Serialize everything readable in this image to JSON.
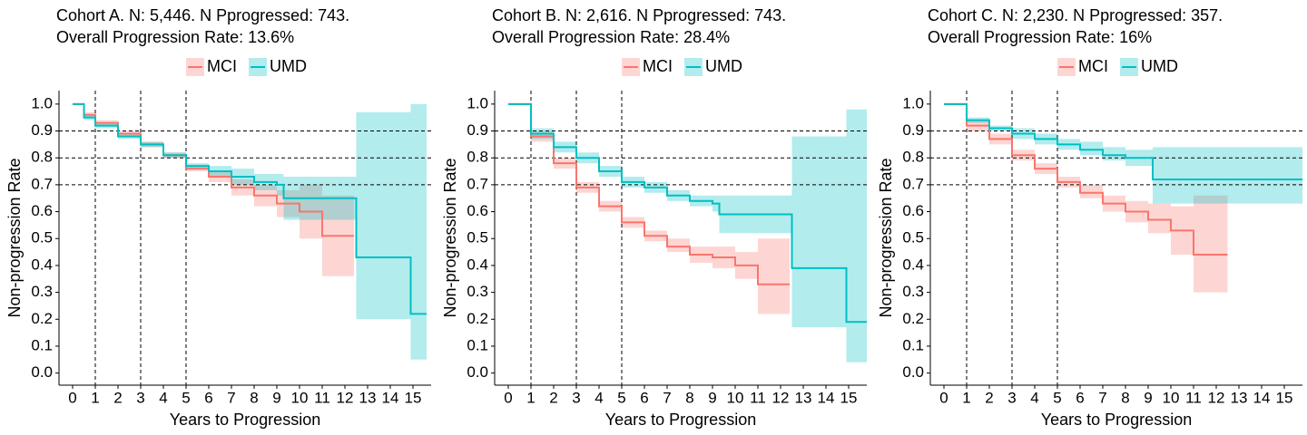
{
  "chart_data": [
    {
      "type": "step",
      "title": "Cohort A. N: 5,446. N Pprogressed: 743.",
      "subtitle": "Overall Progression Rate: 13.6%",
      "x_label": "Years to Progression",
      "y_label": "Non-progression Rate",
      "legend": "top",
      "xlim": [
        -0.6,
        15.8
      ],
      "ylim": [
        -0.045,
        1.05
      ],
      "xticks": [
        0,
        1,
        2,
        3,
        4,
        5,
        6,
        7,
        8,
        9,
        10,
        11,
        12,
        13,
        14,
        15
      ],
      "yticks": [
        {
          "value": 0,
          "label": "0.0"
        },
        0.1,
        0.2,
        0.3,
        0.4,
        0.5,
        0.6,
        0.7,
        0.8,
        0.9,
        {
          "value": 1,
          "label": "1.0"
        }
      ],
      "vlines": [
        1,
        3,
        5
      ],
      "hlines": [
        0.9,
        0.8,
        0.7
      ],
      "series": [
        {
          "name": "MCI",
          "color": "#F8766D",
          "x": [
            0,
            0.5,
            1,
            2,
            3,
            4,
            5,
            6,
            7,
            8,
            9,
            10,
            11,
            12.4
          ],
          "values": [
            1,
            0.96,
            0.93,
            0.89,
            0.85,
            0.81,
            0.76,
            0.73,
            0.69,
            0.66,
            0.63,
            0.6,
            0.51,
            0.51
          ],
          "lower": [
            1,
            0.95,
            0.92,
            0.88,
            0.84,
            0.8,
            0.75,
            0.71,
            0.66,
            0.62,
            0.58,
            0.5,
            0.36,
            0.36
          ],
          "upper": [
            1,
            0.97,
            0.94,
            0.9,
            0.86,
            0.82,
            0.77,
            0.75,
            0.72,
            0.7,
            0.68,
            0.7,
            0.66,
            0.66
          ]
        },
        {
          "name": "UMD",
          "color": "#00BFC4",
          "x": [
            0,
            0.5,
            1,
            2,
            3,
            4,
            5,
            6,
            7,
            8,
            9,
            9.3,
            12.5,
            14.9,
            15.6
          ],
          "values": [
            1,
            0.95,
            0.92,
            0.88,
            0.85,
            0.81,
            0.77,
            0.75,
            0.73,
            0.71,
            0.7,
            0.65,
            0.43,
            0.22,
            0.22
          ],
          "lower": [
            1,
            0.94,
            0.91,
            0.87,
            0.84,
            0.8,
            0.76,
            0.73,
            0.7,
            0.68,
            0.66,
            0.57,
            0.2,
            0.05,
            0.05
          ],
          "upper": [
            1,
            0.96,
            0.93,
            0.89,
            0.86,
            0.82,
            0.78,
            0.77,
            0.76,
            0.74,
            0.74,
            0.73,
            0.97,
            1.0,
            1.0
          ]
        }
      ]
    },
    {
      "type": "step",
      "title": "Cohort B. N: 2,616. N Pprogressed: 743.",
      "subtitle": "Overall Progression Rate: 28.4%",
      "x_label": "Years to Progression",
      "y_label": "Non-progression Rate",
      "legend": "top",
      "xlim": [
        -0.6,
        15.8
      ],
      "ylim": [
        -0.045,
        1.05
      ],
      "xticks": [
        0,
        1,
        2,
        3,
        4,
        5,
        6,
        7,
        8,
        9,
        10,
        11,
        12,
        13,
        14,
        15
      ],
      "yticks": [
        {
          "value": 0,
          "label": "0.0"
        },
        0.1,
        0.2,
        0.3,
        0.4,
        0.5,
        0.6,
        0.7,
        0.8,
        0.9,
        {
          "value": 1,
          "label": "1.0"
        }
      ],
      "vlines": [
        1,
        3,
        5
      ],
      "hlines": [
        0.9,
        0.8,
        0.7
      ],
      "series": [
        {
          "name": "MCI",
          "color": "#F8766D",
          "x": [
            0,
            1,
            2,
            3,
            4,
            5,
            6,
            7,
            8,
            9,
            10,
            11,
            12.4
          ],
          "values": [
            1,
            0.88,
            0.78,
            0.69,
            0.62,
            0.56,
            0.51,
            0.47,
            0.44,
            0.43,
            0.4,
            0.33,
            0.33
          ],
          "lower": [
            1,
            0.86,
            0.76,
            0.67,
            0.6,
            0.54,
            0.49,
            0.45,
            0.41,
            0.39,
            0.35,
            0.22,
            0.22
          ],
          "upper": [
            1,
            0.9,
            0.8,
            0.71,
            0.64,
            0.58,
            0.53,
            0.5,
            0.47,
            0.47,
            0.45,
            0.5,
            0.5
          ]
        },
        {
          "name": "UMD",
          "color": "#00BFC4",
          "x": [
            0,
            1,
            2,
            3,
            4,
            5,
            6,
            7,
            8,
            9,
            9.3,
            10,
            11,
            12.5,
            14.9,
            15.8
          ],
          "values": [
            1,
            0.89,
            0.84,
            0.8,
            0.75,
            0.71,
            0.69,
            0.66,
            0.64,
            0.63,
            0.59,
            0.59,
            0.59,
            0.39,
            0.19,
            0.19
          ],
          "lower": [
            1,
            0.87,
            0.82,
            0.78,
            0.73,
            0.69,
            0.67,
            0.64,
            0.62,
            0.6,
            0.52,
            0.52,
            0.52,
            0.17,
            0.04,
            0.04
          ],
          "upper": [
            1,
            0.91,
            0.86,
            0.82,
            0.77,
            0.73,
            0.71,
            0.68,
            0.66,
            0.66,
            0.66,
            0.66,
            0.66,
            0.88,
            0.98,
            0.98
          ]
        }
      ]
    },
    {
      "type": "step",
      "title": "Cohort C. N: 2,230. N Pprogressed: 357.",
      "subtitle": "Overall Progression Rate: 16%",
      "x_label": "Years to Progression",
      "y_label": "Non-progression Rate",
      "legend": "top",
      "xlim": [
        -0.6,
        15.8
      ],
      "ylim": [
        -0.045,
        1.05
      ],
      "xticks": [
        0,
        1,
        2,
        3,
        4,
        5,
        6,
        7,
        8,
        9,
        10,
        11,
        12,
        13,
        14,
        15
      ],
      "yticks": [
        {
          "value": 0,
          "label": "0.0"
        },
        0.1,
        0.2,
        0.3,
        0.4,
        0.5,
        0.6,
        0.7,
        0.8,
        0.9,
        {
          "value": 1,
          "label": "1.0"
        }
      ],
      "vlines": [
        1,
        3,
        5
      ],
      "hlines": [
        0.9,
        0.8,
        0.7
      ],
      "series": [
        {
          "name": "MCI",
          "color": "#F8766D",
          "x": [
            0,
            1,
            2,
            3,
            4,
            5,
            6,
            7,
            8,
            9,
            10,
            11,
            12.5
          ],
          "values": [
            1,
            0.92,
            0.87,
            0.81,
            0.76,
            0.71,
            0.67,
            0.63,
            0.6,
            0.57,
            0.53,
            0.44,
            0.44
          ],
          "lower": [
            1,
            0.9,
            0.85,
            0.79,
            0.74,
            0.69,
            0.65,
            0.6,
            0.56,
            0.52,
            0.44,
            0.3,
            0.3
          ],
          "upper": [
            1,
            0.94,
            0.89,
            0.83,
            0.78,
            0.73,
            0.7,
            0.66,
            0.64,
            0.63,
            0.62,
            0.66,
            0.66
          ]
        },
        {
          "name": "UMD",
          "color": "#00BFC4",
          "x": [
            0,
            1,
            2,
            3,
            4,
            5,
            6,
            7,
            8,
            9.2,
            10,
            12,
            15.8
          ],
          "values": [
            1,
            0.94,
            0.91,
            0.89,
            0.87,
            0.85,
            0.83,
            0.81,
            0.8,
            0.72,
            0.72,
            0.72,
            0.72
          ],
          "lower": [
            1,
            0.93,
            0.9,
            0.87,
            0.85,
            0.83,
            0.81,
            0.79,
            0.77,
            0.63,
            0.63,
            0.63,
            0.63
          ],
          "upper": [
            1,
            0.95,
            0.92,
            0.91,
            0.89,
            0.87,
            0.86,
            0.84,
            0.83,
            0.84,
            0.84,
            0.84,
            0.84
          ]
        }
      ]
    }
  ]
}
